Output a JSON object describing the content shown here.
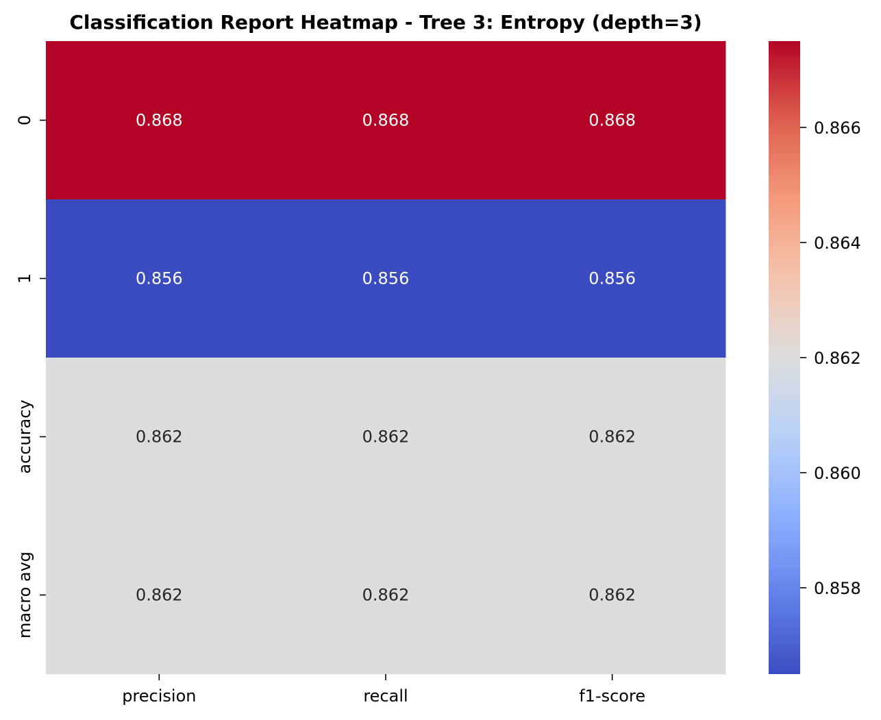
{
  "chart_data": {
    "type": "heatmap",
    "title": "Classification Report Heatmap - Tree 3: Entropy (depth=3)",
    "xlabel": "",
    "ylabel": "",
    "x_labels": [
      "precision",
      "recall",
      "f1-score"
    ],
    "y_labels": [
      "0",
      "1",
      "accuracy",
      "macro avg"
    ],
    "values": [
      [
        0.8675,
        0.8675,
        0.8675
      ],
      [
        0.8565,
        0.8565,
        0.8565
      ],
      [
        0.862,
        0.862,
        0.862
      ],
      [
        0.862,
        0.862,
        0.862
      ]
    ],
    "cell_labels": [
      [
        "0.868",
        "0.868",
        "0.868"
      ],
      [
        "0.856",
        "0.856",
        "0.856"
      ],
      [
        "0.862",
        "0.862",
        "0.862"
      ],
      [
        "0.862",
        "0.862",
        "0.862"
      ]
    ],
    "colormap": "coolwarm",
    "vmin": 0.8565,
    "vmax": 0.8675,
    "cell_label_colors": {
      "dark": "#262626",
      "light": "#ffffff"
    },
    "colorbar": {
      "ticks": [
        0.858,
        0.86,
        0.862,
        0.864,
        0.866
      ],
      "tick_labels": [
        "0.858",
        "0.860",
        "0.862",
        "0.864",
        "0.866"
      ]
    },
    "grid": false,
    "legend": "colorbar-right"
  }
}
